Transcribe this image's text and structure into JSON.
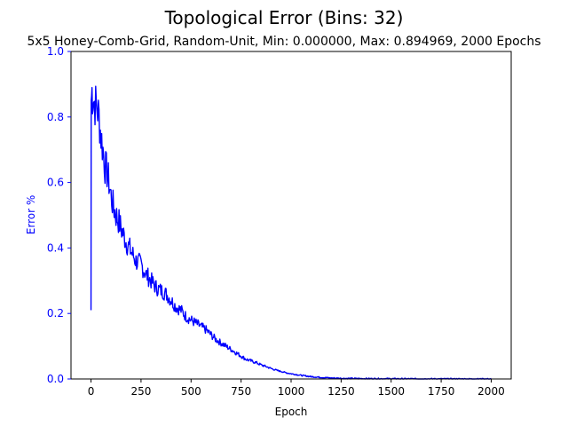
{
  "chart_data": {
    "type": "line",
    "title": "Topological Error (Bins: 32)",
    "subtitle": "5x5 Honey-Comb-Grid, Random-Unit, Min: 0.000000, Max: 0.894969, 2000 Epochs",
    "xlabel": "Epoch",
    "ylabel": "Error %",
    "xlim": [
      -100,
      2100
    ],
    "ylim": [
      0,
      1
    ],
    "x_ticks": [
      0,
      250,
      500,
      750,
      1000,
      1250,
      1500,
      1750,
      2000
    ],
    "x_tick_labels": [
      "0",
      "250",
      "500",
      "750",
      "1000",
      "1250",
      "1500",
      "1750",
      "2000"
    ],
    "y_ticks": [
      0.0,
      0.2,
      0.4,
      0.6,
      0.8,
      1.0
    ],
    "y_tick_labels": [
      "0.0",
      "0.2",
      "0.4",
      "0.6",
      "0.8",
      "1.0"
    ],
    "grid": false,
    "legend": "none",
    "series": [
      {
        "color": "#0000ff",
        "ylabel_color": "#0000ff",
        "points": [
          [
            0,
            0.21
          ],
          [
            1,
            0.85
          ],
          [
            5,
            0.88
          ],
          [
            10,
            0.86
          ],
          [
            20,
            0.84
          ],
          [
            30,
            0.83
          ],
          [
            40,
            0.8
          ],
          [
            50,
            0.74
          ],
          [
            60,
            0.7
          ],
          [
            70,
            0.65
          ],
          [
            80,
            0.63
          ],
          [
            90,
            0.6
          ],
          [
            100,
            0.56
          ],
          [
            110,
            0.53
          ],
          [
            125,
            0.5
          ],
          [
            140,
            0.48
          ],
          [
            150,
            0.46
          ],
          [
            175,
            0.42
          ],
          [
            200,
            0.39
          ],
          [
            225,
            0.36
          ],
          [
            250,
            0.35
          ],
          [
            275,
            0.32
          ],
          [
            300,
            0.3
          ],
          [
            325,
            0.28
          ],
          [
            350,
            0.27
          ],
          [
            375,
            0.26
          ],
          [
            400,
            0.24
          ],
          [
            425,
            0.22
          ],
          [
            450,
            0.21
          ],
          [
            475,
            0.19
          ],
          [
            500,
            0.18
          ],
          [
            525,
            0.17
          ],
          [
            550,
            0.16
          ],
          [
            575,
            0.15
          ],
          [
            600,
            0.135
          ],
          [
            625,
            0.12
          ],
          [
            650,
            0.11
          ],
          [
            675,
            0.1
          ],
          [
            700,
            0.09
          ],
          [
            725,
            0.08
          ],
          [
            750,
            0.07
          ],
          [
            775,
            0.06
          ],
          [
            800,
            0.055
          ],
          [
            825,
            0.05
          ],
          [
            850,
            0.043
          ],
          [
            875,
            0.038
          ],
          [
            900,
            0.032
          ],
          [
            925,
            0.027
          ],
          [
            950,
            0.023
          ],
          [
            975,
            0.019
          ],
          [
            1000,
            0.016
          ],
          [
            1050,
            0.011
          ],
          [
            1100,
            0.007
          ],
          [
            1150,
            0.005
          ],
          [
            1200,
            0.003
          ],
          [
            1250,
            0.002
          ],
          [
            1300,
            0.0015
          ],
          [
            1400,
            0.001
          ],
          [
            1500,
            0.0008
          ],
          [
            1600,
            0.0005
          ],
          [
            1700,
            0.0003
          ],
          [
            1800,
            0.0002
          ],
          [
            1900,
            0.0001
          ],
          [
            2000,
            0.0
          ]
        ]
      }
    ]
  }
}
